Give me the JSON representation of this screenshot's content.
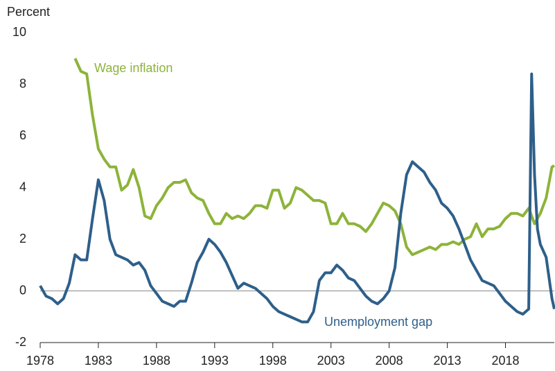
{
  "chart_data": {
    "type": "line",
    "y_axis_label": "Percent",
    "x": [
      1978.0,
      1978.5,
      1979.0,
      1979.5,
      1980.0,
      1980.5,
      1981.0,
      1981.5,
      1982.0,
      1982.5,
      1983.0,
      1983.5,
      1984.0,
      1984.5,
      1985.0,
      1985.5,
      1986.0,
      1986.5,
      1987.0,
      1987.5,
      1988.0,
      1988.5,
      1989.0,
      1989.5,
      1990.0,
      1990.5,
      1991.0,
      1991.5,
      1992.0,
      1992.5,
      1993.0,
      1993.5,
      1994.0,
      1994.5,
      1995.0,
      1995.5,
      1996.0,
      1996.5,
      1997.0,
      1997.5,
      1998.0,
      1998.5,
      1999.0,
      1999.5,
      2000.0,
      2000.5,
      2001.0,
      2001.5,
      2002.0,
      2002.5,
      2003.0,
      2003.5,
      2004.0,
      2004.5,
      2005.0,
      2005.5,
      2006.0,
      2006.5,
      2007.0,
      2007.5,
      2008.0,
      2008.5,
      2009.0,
      2009.5,
      2010.0,
      2010.5,
      2011.0,
      2011.5,
      2012.0,
      2012.5,
      2013.0,
      2013.5,
      2014.0,
      2014.5,
      2015.0,
      2015.5,
      2016.0,
      2016.5,
      2017.0,
      2017.5,
      2018.0,
      2018.5,
      2019.0,
      2019.5,
      2020.0,
      2020.25,
      2020.5,
      2020.75,
      2021.0,
      2021.5,
      2022.0,
      2022.2
    ],
    "series": [
      {
        "name": "Wage inflation",
        "color": "#8db33a",
        "values": [
          null,
          null,
          null,
          null,
          null,
          null,
          9.0,
          8.5,
          8.4,
          6.8,
          5.5,
          5.1,
          4.8,
          4.8,
          3.9,
          4.1,
          4.7,
          4.0,
          2.9,
          2.8,
          3.3,
          3.6,
          4.0,
          4.2,
          4.2,
          4.3,
          3.8,
          3.6,
          3.5,
          3.0,
          2.6,
          2.6,
          3.0,
          2.8,
          2.9,
          2.8,
          3.0,
          3.3,
          3.3,
          3.2,
          3.9,
          3.9,
          3.2,
          3.4,
          4.0,
          3.9,
          3.7,
          3.5,
          3.5,
          3.4,
          2.6,
          2.6,
          3.0,
          2.6,
          2.6,
          2.5,
          2.3,
          2.6,
          3.0,
          3.4,
          3.3,
          3.1,
          2.6,
          1.7,
          1.4,
          1.5,
          1.6,
          1.7,
          1.6,
          1.8,
          1.8,
          1.9,
          1.8,
          2.0,
          2.1,
          2.6,
          2.1,
          2.4,
          2.4,
          2.5,
          2.8,
          3.0,
          3.0,
          2.9,
          3.2,
          2.9,
          2.6,
          2.8,
          3.0,
          3.6,
          4.8,
          4.85
        ]
      },
      {
        "name": "Unemployment gap",
        "color": "#2e5f8a",
        "values": [
          0.2,
          -0.2,
          -0.3,
          -0.5,
          -0.3,
          0.3,
          1.4,
          1.2,
          1.2,
          2.8,
          4.3,
          3.5,
          2.0,
          1.4,
          1.3,
          1.2,
          1.0,
          1.1,
          0.8,
          0.2,
          -0.1,
          -0.4,
          -0.5,
          -0.6,
          -0.4,
          -0.4,
          0.3,
          1.1,
          1.5,
          2.0,
          1.8,
          1.5,
          1.1,
          0.6,
          0.1,
          0.3,
          0.2,
          0.1,
          -0.1,
          -0.3,
          -0.6,
          -0.8,
          -0.9,
          -1.0,
          -1.1,
          -1.2,
          -1.2,
          -0.8,
          0.4,
          0.7,
          0.7,
          1.0,
          0.8,
          0.5,
          0.4,
          0.1,
          -0.2,
          -0.4,
          -0.5,
          -0.3,
          0.0,
          0.9,
          3.0,
          4.5,
          5.0,
          4.8,
          4.6,
          4.2,
          3.9,
          3.4,
          3.2,
          2.9,
          2.4,
          1.8,
          1.2,
          0.8,
          0.4,
          0.3,
          0.2,
          -0.1,
          -0.4,
          -0.6,
          -0.8,
          -0.9,
          -0.7,
          8.4,
          4.5,
          2.4,
          1.8,
          1.3,
          -0.3,
          -0.7
        ]
      }
    ],
    "xlim": [
      1978,
      2022.2
    ],
    "xticks": [
      1978,
      1983,
      1988,
      1993,
      1998,
      2003,
      2008,
      2013,
      2018
    ],
    "ylim": [
      -2,
      10
    ],
    "yticks": [
      -2,
      0,
      2,
      4,
      6,
      8,
      10
    ],
    "reference_line": 0
  }
}
